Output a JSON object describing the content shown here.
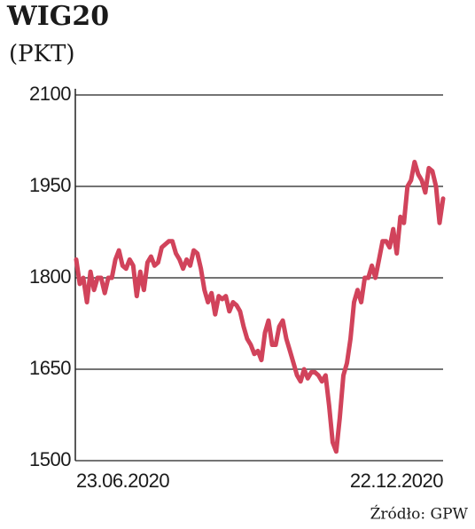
{
  "chart_data": {
    "type": "line",
    "title": "WIG20",
    "subtitle": "(PKT)",
    "source": "Źródło: GPW",
    "categories": [
      "23.06.2020",
      null,
      null,
      null,
      null,
      null,
      null,
      null,
      null,
      null,
      null,
      null,
      null,
      null,
      null,
      null,
      null,
      null,
      null,
      null,
      null,
      null,
      null,
      null,
      null,
      null,
      null,
      null,
      null,
      null,
      null,
      null,
      null,
      null,
      null,
      null,
      null,
      null,
      null,
      null,
      null,
      null,
      null,
      null,
      null,
      null,
      null,
      null,
      null,
      null,
      null,
      null,
      null,
      null,
      null,
      null,
      null,
      null,
      null,
      null,
      null,
      null,
      null,
      null,
      null,
      null,
      null,
      null,
      null,
      null,
      null,
      null,
      null,
      null,
      null,
      null,
      null,
      null,
      null,
      null,
      null,
      null,
      null,
      null,
      null,
      null,
      null,
      null,
      null,
      null,
      null,
      null,
      null,
      null,
      null,
      null,
      null,
      null,
      null,
      null,
      null,
      null,
      null,
      "22.12.2020"
    ],
    "values": [
      1830,
      1790,
      1800,
      1760,
      1810,
      1780,
      1800,
      1800,
      1775,
      1800,
      1800,
      1830,
      1845,
      1820,
      1815,
      1830,
      1820,
      1770,
      1810,
      1780,
      1825,
      1835,
      1820,
      1825,
      1850,
      1855,
      1860,
      1860,
      1840,
      1830,
      1815,
      1830,
      1820,
      1845,
      1840,
      1815,
      1780,
      1760,
      1775,
      1740,
      1770,
      1765,
      1770,
      1745,
      1760,
      1755,
      1745,
      1720,
      1700,
      1690,
      1675,
      1680,
      1665,
      1710,
      1730,
      1690,
      1690,
      1720,
      1730,
      1700,
      1680,
      1660,
      1640,
      1630,
      1650,
      1635,
      1645,
      1645,
      1640,
      1630,
      1640,
      1590,
      1530,
      1515,
      1570,
      1640,
      1660,
      1700,
      1760,
      1780,
      1760,
      1800,
      1800,
      1820,
      1800,
      1830,
      1860,
      1860,
      1850,
      1880,
      1840,
      1900,
      1890,
      1950,
      1960,
      1990,
      1970,
      1960,
      1940,
      1980,
      1975,
      1950,
      1890,
      1930
    ],
    "color": "#d1435b",
    "ylim": [
      1500,
      2100
    ],
    "yticks": [
      1500,
      1650,
      1800,
      1950,
      2100
    ],
    "grid": true
  }
}
